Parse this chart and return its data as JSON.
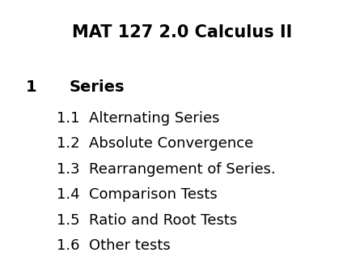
{
  "title": "MAT 127 2.0 Calculus II",
  "title_fontsize": 15,
  "title_fontweight": "bold",
  "background_color": "#ffffff",
  "text_color": "#000000",
  "section_number": "1",
  "section_title": "Series",
  "section_fontsize": 14,
  "subsections": [
    {
      "number": "1.1",
      "text": "Alternating Series"
    },
    {
      "number": "1.2",
      "text": "Absolute Convergence"
    },
    {
      "number": "1.3",
      "text": "Rearrangement of Series."
    },
    {
      "number": "1.4",
      "text": "Comparison Tests"
    },
    {
      "number": "1.5",
      "text": "Ratio and Root Tests"
    },
    {
      "number": "1.6",
      "text": "Other tests"
    }
  ],
  "subsection_fontsize": 13
}
